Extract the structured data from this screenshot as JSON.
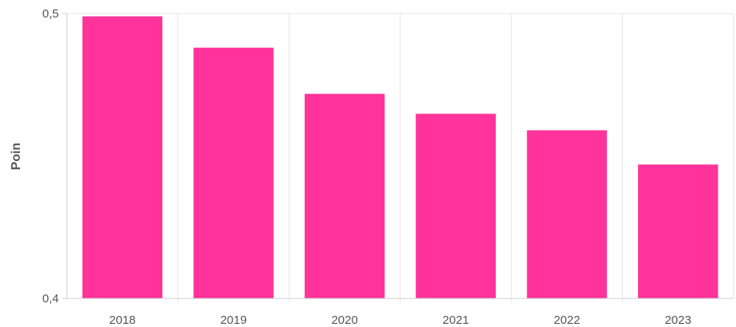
{
  "chart_data": {
    "type": "bar",
    "title": "",
    "xlabel": "",
    "ylabel": "Poin",
    "categories": [
      "2018",
      "2019",
      "2020",
      "2021",
      "2022",
      "2023"
    ],
    "values": [
      0.499,
      0.488,
      0.4718,
      0.4648,
      0.459,
      0.447
    ],
    "ylim": [
      0.4,
      0.5
    ],
    "yticks": [
      {
        "value": 0.4,
        "label": "0,4"
      },
      {
        "value": 0.5,
        "label": "0,5"
      }
    ],
    "grid": "vertical",
    "bar_color": "#ff3399",
    "grid_color": "#e6e6e6",
    "axis_color": "#cccccc",
    "text_color": "#555555"
  }
}
